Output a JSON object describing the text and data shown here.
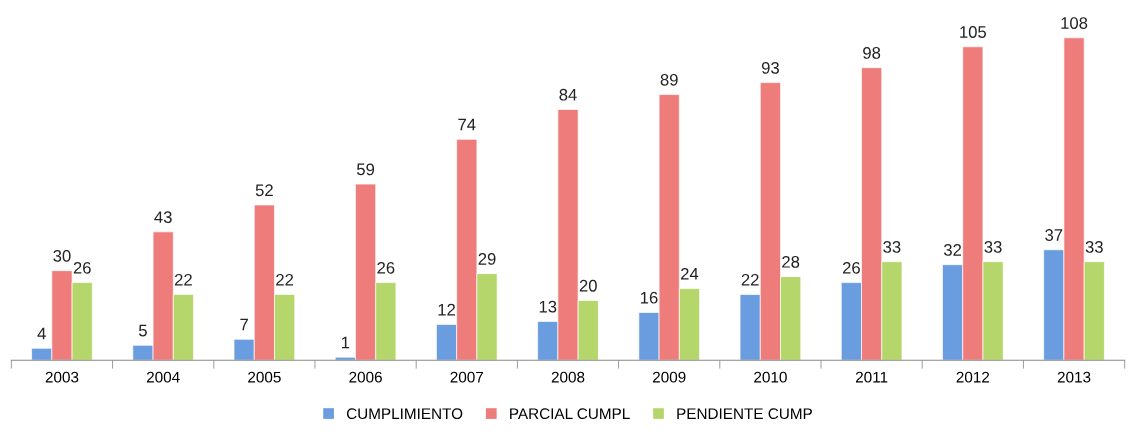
{
  "chart_data": {
    "type": "bar",
    "categories": [
      "2003",
      "2004",
      "2005",
      "2006",
      "2007",
      "2008",
      "2009",
      "2010",
      "2011",
      "2012",
      "2013"
    ],
    "series": [
      {
        "name": "CUMPLIMIENTO",
        "color": "#6a9ce0",
        "values": [
          4,
          5,
          7,
          1,
          12,
          13,
          16,
          22,
          26,
          32,
          37
        ]
      },
      {
        "name": "PARCIAL CUMPL",
        "color": "#ee7c7a",
        "values": [
          30,
          43,
          52,
          59,
          74,
          84,
          89,
          93,
          98,
          105,
          108
        ]
      },
      {
        "name": "PENDIENTE CUMP",
        "color": "#b5d66a",
        "values": [
          26,
          22,
          22,
          26,
          29,
          20,
          24,
          28,
          33,
          33,
          33
        ]
      }
    ],
    "data_labels": true,
    "legend": "bottom"
  }
}
